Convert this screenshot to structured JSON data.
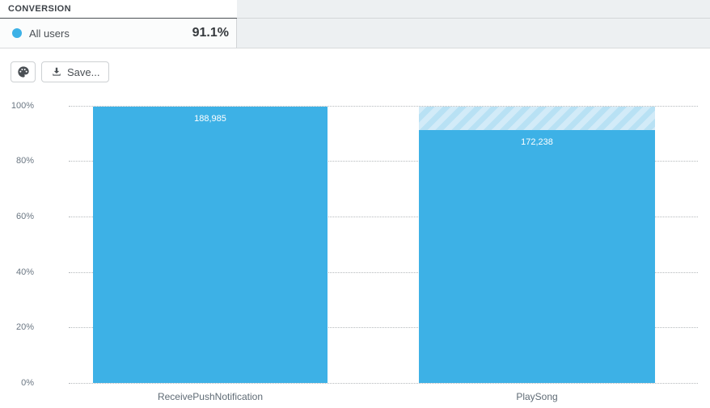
{
  "header": {
    "title": "CONVERSION"
  },
  "legend": {
    "series_label": "All users",
    "conversion_rate": "91.1%",
    "dot_color": "#3db1e6"
  },
  "toolbar": {
    "palette_button_icon": "palette-icon",
    "save_label": "Save...",
    "save_button_icon": "download-icon"
  },
  "colors": {
    "bar": "#3db1e6",
    "dropoff_hatch_light": "#d2ebf8",
    "dropoff_hatch_dark": "#b8e1f4",
    "panel_gray": "#edf0f2",
    "grid_dots": "#b5b9bc"
  },
  "chart_data": {
    "type": "bar",
    "title": "",
    "categories": [
      "ReceivePushNotification",
      "PlaySong"
    ],
    "series": [
      {
        "name": "All users",
        "values": [
          188985,
          172238
        ]
      }
    ],
    "value_labels": [
      "188,985",
      "172,238"
    ],
    "percent_of_first_step": [
      100,
      91.1
    ],
    "overall_conversion": "91.1%",
    "ytick_labels": [
      "100%",
      "80%",
      "60%",
      "40%",
      "20%",
      "0%"
    ],
    "ylim": [
      0,
      100
    ],
    "grid": "horizontal-dotted",
    "legend_position": "top-left",
    "dropoff_shown_as": "diagonal-hatch"
  }
}
